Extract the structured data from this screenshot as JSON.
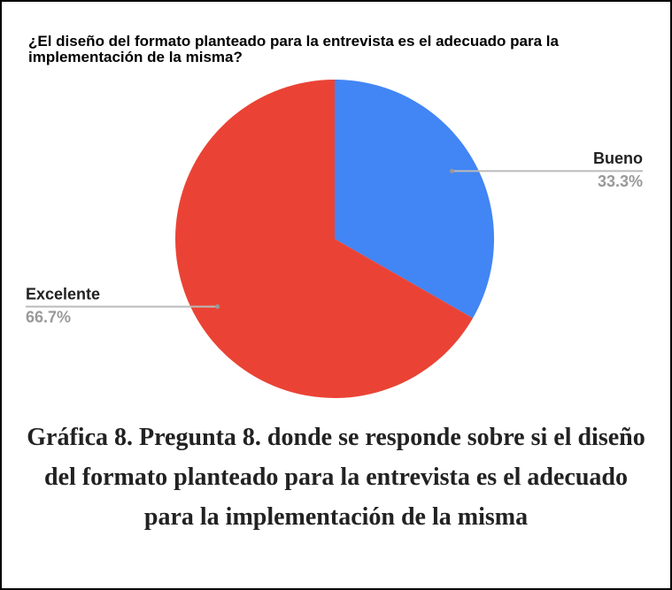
{
  "chart_data": {
    "type": "pie",
    "title": "¿El diseño del formato planteado para la entrevista es el adecuado para la implementación de la misma?",
    "categories": [
      "Bueno",
      "Excelente"
    ],
    "values": [
      33.3,
      66.7
    ],
    "value_labels": [
      "33.3%",
      "66.7%"
    ],
    "colors": [
      "#4285f4",
      "#ea4335"
    ]
  },
  "caption": "Gráfica 8. Pregunta 8. donde se responde sobre si el diseño del formato planteado para la entrevista es el adecuado para la implementación de la misma"
}
